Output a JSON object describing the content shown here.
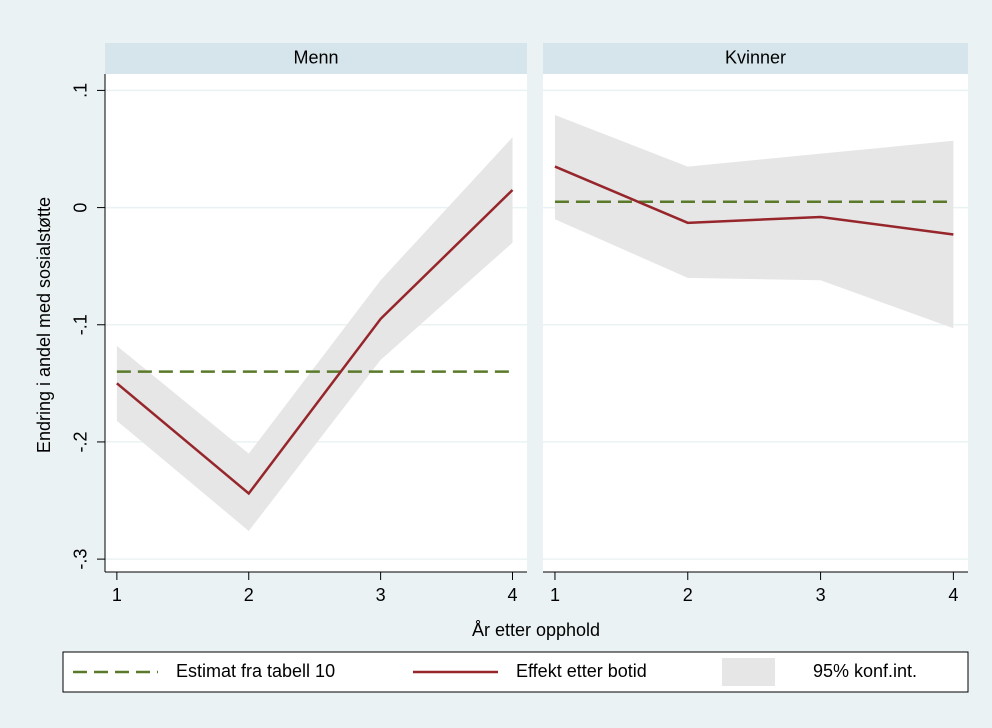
{
  "chart_data": {
    "type": "line",
    "ylabel": "Endring i andel med sosialstøtte",
    "xlabel": "År etter opphold",
    "xlim": [
      0.91,
      4.11
    ],
    "ylim": [
      -0.311,
      0.114
    ],
    "xticks": [
      1,
      2,
      3,
      4
    ],
    "yticks": [
      {
        "value": 0.1,
        "label": ".1"
      },
      0,
      {
        "value": -0.1,
        "label": "-.1"
      },
      {
        "value": -0.2,
        "label": "-.2"
      },
      {
        "value": -0.3,
        "label": "-.3"
      }
    ],
    "grid": true,
    "legend": "bottom",
    "series": [
      {
        "name": "Estimat fra tabell 10",
        "color": "#5a7a2a",
        "style": "dashed"
      },
      {
        "name": "Effekt etter botid",
        "color": "#96262b",
        "style": "solid"
      },
      {
        "name": "95% konf.int.",
        "color": "#e6e6e6",
        "style": "band"
      }
    ],
    "panels": [
      {
        "title": "Menn",
        "x": [
          1,
          2,
          3,
          4
        ],
        "estimate": [
          -0.14,
          -0.14,
          -0.14,
          -0.14
        ],
        "effect": [
          -0.15,
          -0.244,
          -0.095,
          0.015
        ],
        "lower": [
          -0.182,
          -0.276,
          -0.13,
          -0.03
        ],
        "upper": [
          -0.118,
          -0.21,
          -0.062,
          0.06
        ]
      },
      {
        "title": "Kvinner",
        "x": [
          1,
          2,
          3,
          4
        ],
        "estimate": [
          0.005,
          0.005,
          0.005,
          0.005
        ],
        "effect": [
          0.035,
          -0.013,
          -0.008,
          -0.023
        ],
        "lower": [
          -0.01,
          -0.06,
          -0.062,
          -0.103
        ],
        "upper": [
          0.079,
          0.035,
          0.046,
          0.057
        ]
      }
    ]
  }
}
